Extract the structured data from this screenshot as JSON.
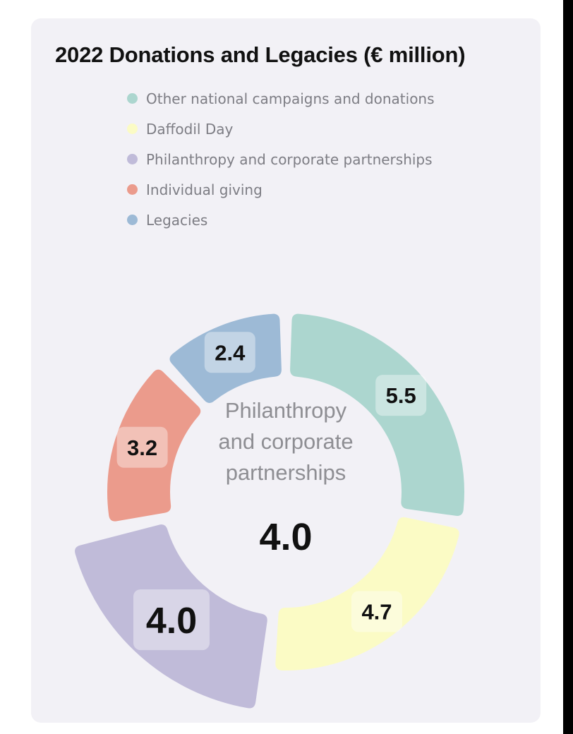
{
  "chart_data": {
    "type": "pie",
    "variant": "donut",
    "title": "2022 Donations and Legacies (€ million)",
    "legend_position": "top",
    "categories": [
      "Other national campaigns and donations",
      "Daffodil Day",
      "Philanthropy and corporate partnerships",
      "Individual giving",
      "Legacies"
    ],
    "values": [
      5.5,
      4.7,
      4.0,
      3.2,
      2.4
    ],
    "value_labels": [
      "5.5",
      "4.7",
      "4.0",
      "3.2",
      "2.4"
    ],
    "colors": [
      "#acd6cf",
      "#fbfbc5",
      "#c0bbd9",
      "#eb9b8c",
      "#9dbad6"
    ],
    "selected_index": 2,
    "center": {
      "label_lines": [
        "Philanthropy",
        "and corporate",
        "partnerships"
      ],
      "value": "4.0"
    }
  }
}
